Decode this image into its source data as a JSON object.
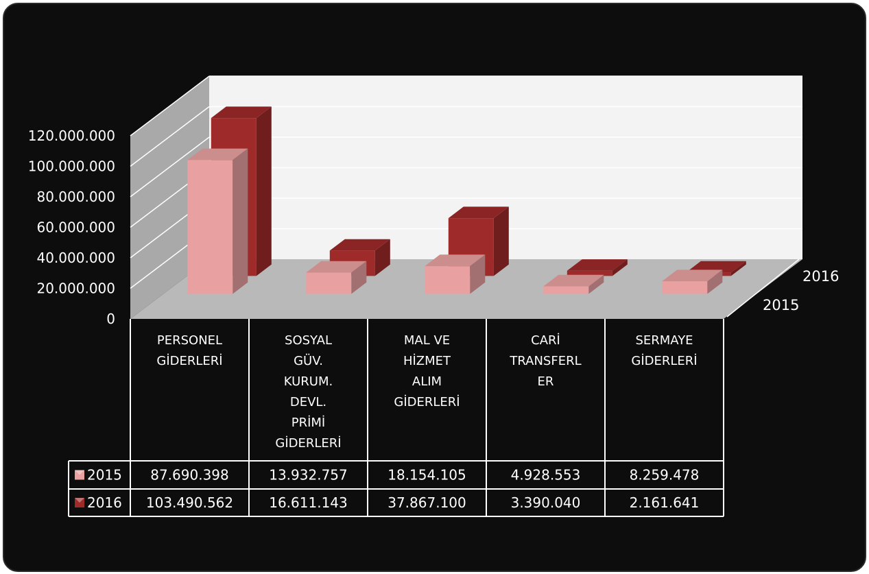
{
  "chart_data": {
    "type": "bar",
    "title": "",
    "xlabel": "",
    "ylabel": "",
    "ylim": [
      0,
      120000000
    ],
    "yticks": [
      0,
      20000000,
      40000000,
      60000000,
      80000000,
      100000000,
      120000000
    ],
    "ytick_labels": [
      "0",
      "20.000.000",
      "40.000.000",
      "60.000.000",
      "80.000.000",
      "100.000.000",
      "120.000.000"
    ],
    "grid": true,
    "legend": "data-table",
    "categories": [
      [
        "PERSONEL",
        "GİDERLERİ"
      ],
      [
        "SOSYAL",
        "GÜV.",
        "KURUM.",
        "DEVL.",
        "PRİMİ",
        "GİDERLERİ"
      ],
      [
        "MAL VE",
        "HİZMET",
        "ALIM",
        "GİDERLERİ"
      ],
      [
        "CARİ",
        "TRANSFERL",
        "ER"
      ],
      [
        "SERMAYE",
        "GİDERLERİ"
      ]
    ],
    "series": [
      {
        "name": "2015",
        "color": "#e8a0a0",
        "values": [
          87690398,
          13932757,
          18154105,
          4928553,
          8259478
        ],
        "value_labels": [
          "87.690.398",
          "13.932.757",
          "18.154.105",
          "4.928.553",
          "8.259.478"
        ]
      },
      {
        "name": "2016",
        "color": "#9e2a2a",
        "values": [
          103490562,
          16611143,
          37867100,
          3390040,
          2161641
        ],
        "value_labels": [
          "103.490.562",
          "16.611.143",
          "37.867.100",
          "3.390.040",
          "2.161.641"
        ]
      }
    ]
  }
}
